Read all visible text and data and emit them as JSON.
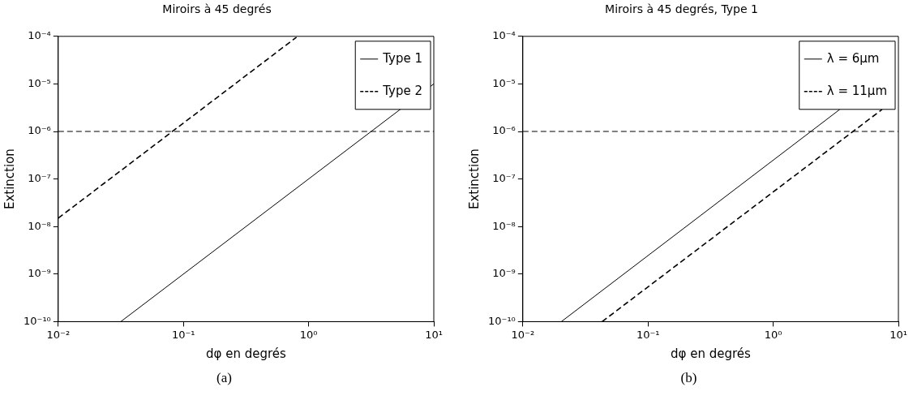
{
  "chart_data": [
    {
      "type": "line",
      "title": "Miroirs à 45 degrés",
      "xlabel": "dφ en degrés",
      "ylabel": "Extinction",
      "log": "xy",
      "grid": false,
      "legend": "top right",
      "marker": "none",
      "xlim": [
        0.01,
        10
      ],
      "xticks": [
        {
          "value": 0.01,
          "label": "10⁻²"
        },
        {
          "value": 0.1,
          "label": "10⁻¹"
        },
        {
          "value": 1,
          "label": "10⁰"
        },
        {
          "value": 10,
          "label": "10¹"
        }
      ],
      "ylim": [
        1e-10,
        0.0001
      ],
      "yticks": [
        {
          "value": 1e-10,
          "label": "10⁻¹⁰"
        },
        {
          "value": 1e-09,
          "label": "10⁻⁹"
        },
        {
          "value": 1e-08,
          "label": "10⁻⁸"
        },
        {
          "value": 1e-07,
          "label": "10⁻⁷"
        },
        {
          "value": 1e-06,
          "label": "10⁻⁶"
        },
        {
          "value": 1e-05,
          "label": "10⁻⁵"
        },
        {
          "value": 0.0001,
          "label": "10⁻⁴"
        }
      ],
      "ref_lines": [
        {
          "axis": "y",
          "value": 1e-06,
          "color": "#000000",
          "line_style": "dashed"
        }
      ],
      "series": [
        {
          "name": "Type 1",
          "color": "#000000",
          "line_style": "solid",
          "x": [
            0.0316,
            10
          ],
          "values": [
            1e-10,
            1e-05
          ]
        },
        {
          "name": "Type 2",
          "color": "#000000",
          "line_style": "dashed",
          "x": [
            0.01,
            0.8
          ],
          "values": [
            1.5e-08,
            9.6e-05
          ]
        }
      ],
      "annotations": [
        "(a)"
      ]
    },
    {
      "type": "line",
      "title": "Miroirs à 45 degrés, Type 1",
      "xlabel": "dφ en degrés",
      "ylabel": "Extinction",
      "log": "xy",
      "grid": false,
      "legend": "top right",
      "marker": "none",
      "xlim": [
        0.01,
        10
      ],
      "xticks": [
        {
          "value": 0.01,
          "label": "10⁻²"
        },
        {
          "value": 0.1,
          "label": "10⁻¹"
        },
        {
          "value": 1,
          "label": "10⁰"
        },
        {
          "value": 10,
          "label": "10¹"
        }
      ],
      "ylim": [
        1e-10,
        0.0001
      ],
      "yticks": [
        {
          "value": 1e-10,
          "label": "10⁻¹⁰"
        },
        {
          "value": 1e-09,
          "label": "10⁻⁹"
        },
        {
          "value": 1e-08,
          "label": "10⁻⁸"
        },
        {
          "value": 1e-07,
          "label": "10⁻⁷"
        },
        {
          "value": 1e-06,
          "label": "10⁻⁶"
        },
        {
          "value": 1e-05,
          "label": "10⁻⁵"
        },
        {
          "value": 0.0001,
          "label": "10⁻⁴"
        }
      ],
      "ref_lines": [
        {
          "axis": "y",
          "value": 1e-06,
          "color": "#000000",
          "line_style": "dashed"
        }
      ],
      "series": [
        {
          "name": "λ = 6μm",
          "color": "#000000",
          "line_style": "solid",
          "x": [
            0.0203,
            3.4
          ],
          "values": [
            1e-10,
            2.9e-06
          ]
        },
        {
          "name": "λ = 11μm",
          "color": "#000000",
          "line_style": "dashed",
          "x": [
            0.043,
            7.4
          ],
          "values": [
            1e-10,
            2.9e-06
          ]
        }
      ],
      "annotations": [
        "(b)"
      ]
    }
  ]
}
